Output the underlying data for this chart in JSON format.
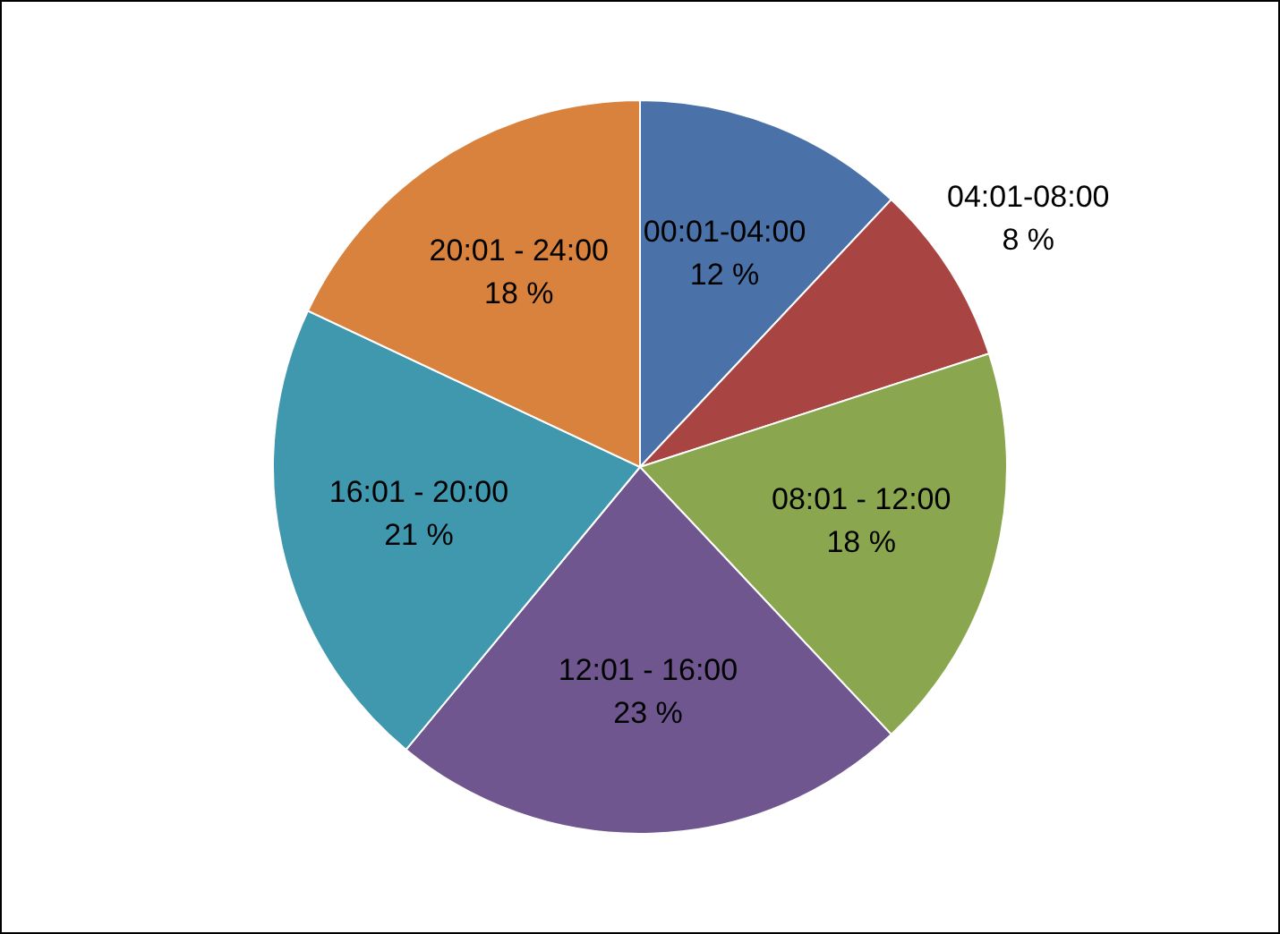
{
  "chart_data": {
    "type": "pie",
    "categories": [
      "00:01-04:00",
      "04:01-08:00",
      "08:01 - 12:00",
      "12:01 - 16:00",
      "16:01 - 20:00",
      "20:01 - 24:00"
    ],
    "values": [
      12,
      8,
      18,
      23,
      21,
      18
    ],
    "value_labels": [
      "12 %",
      "8 %",
      "18 %",
      "23 %",
      "21 %",
      "18 %"
    ],
    "colors": [
      "#4a72a8",
      "#a84543",
      "#8aa64e",
      "#6f568f",
      "#3f98ae",
      "#d9823d"
    ],
    "legend": false
  }
}
